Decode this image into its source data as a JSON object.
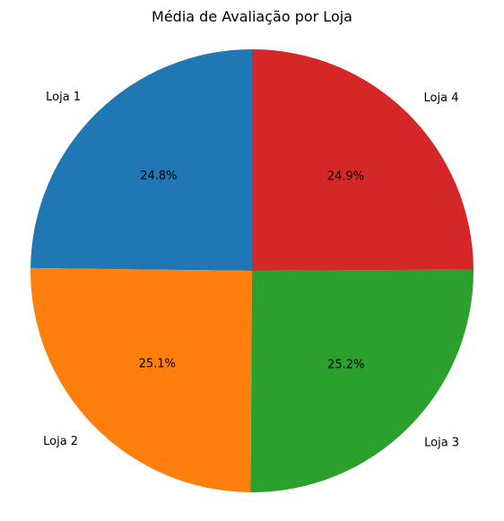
{
  "chart_data": {
    "type": "pie",
    "title": "Média de Avaliação por Loja",
    "start_angle_deg": 90,
    "direction": "counterclockwise",
    "slices": [
      {
        "label": "Loja 1",
        "value": 24.8,
        "percent_label": "24.8%",
        "color": "#1f77b4"
      },
      {
        "label": "Loja 2",
        "value": 25.1,
        "percent_label": "25.1%",
        "color": "#ff7f0e"
      },
      {
        "label": "Loja 3",
        "value": 25.2,
        "percent_label": "25.2%",
        "color": "#2ca02c"
      },
      {
        "label": "Loja 4",
        "value": 24.9,
        "percent_label": "24.9%",
        "color": "#d62728"
      }
    ]
  }
}
